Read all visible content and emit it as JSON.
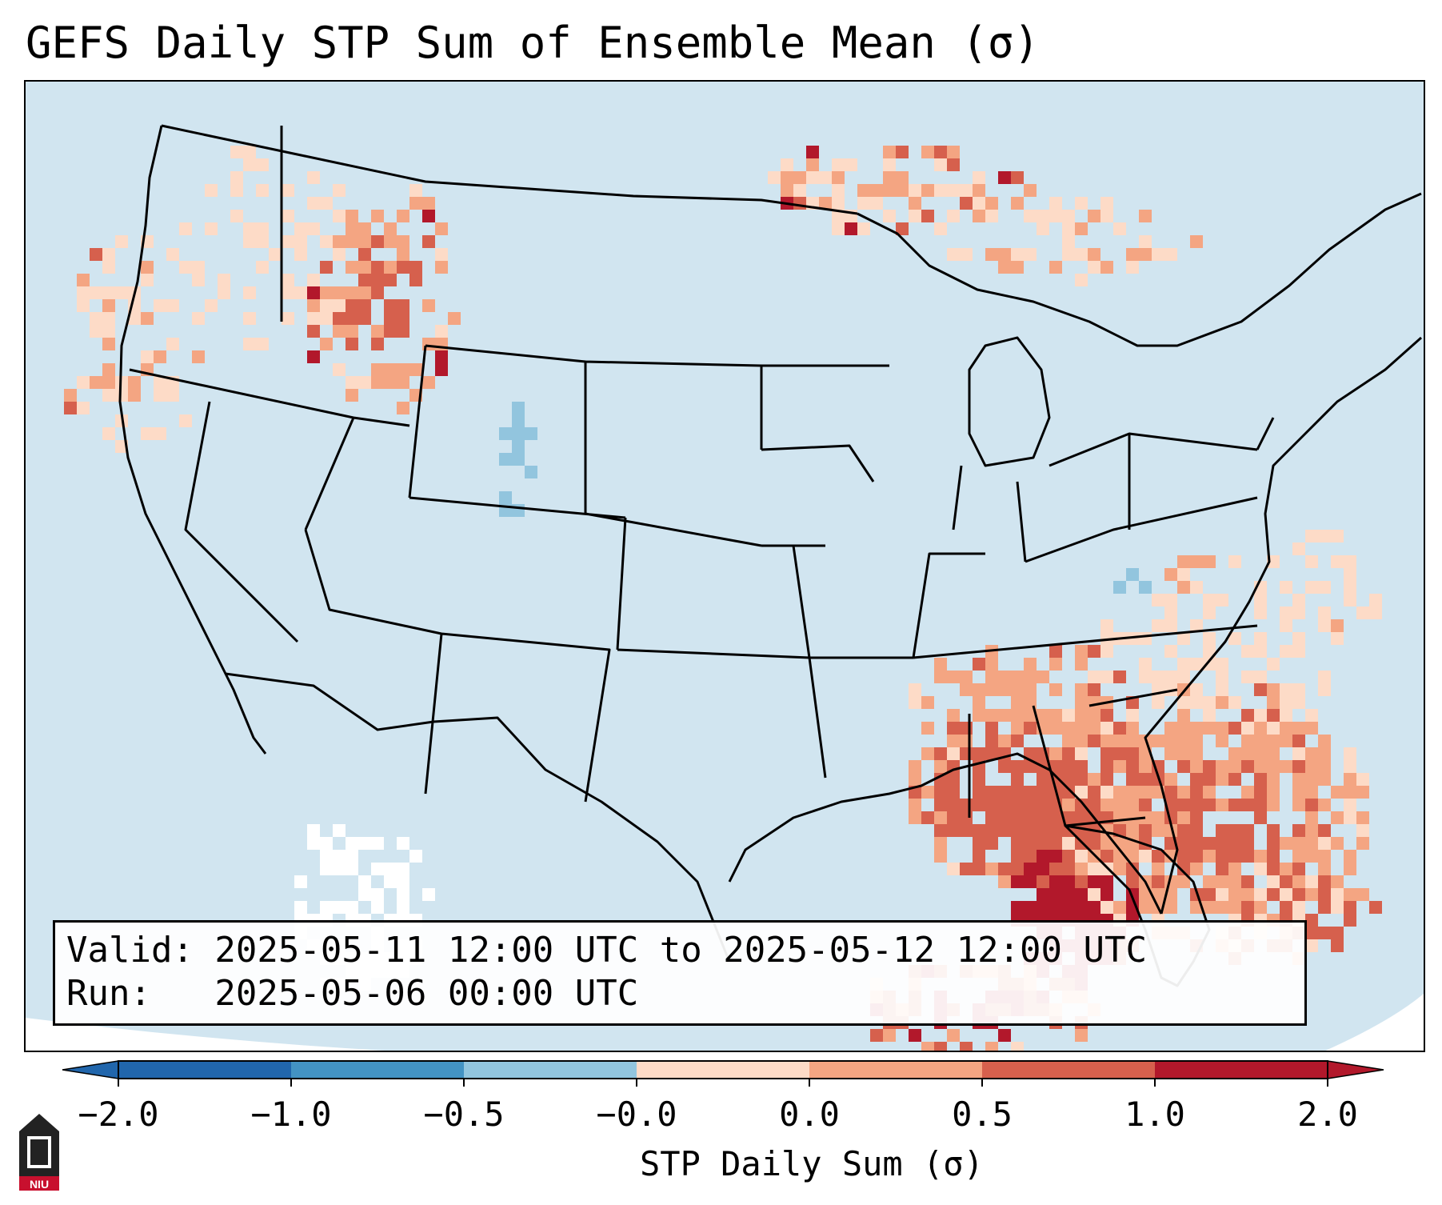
{
  "title": "GEFS Daily STP Sum of Ensemble Mean (σ)",
  "info": {
    "valid_line": "Valid: 2025-05-11 12:00 UTC to 2025-05-12 12:00 UTC",
    "run_line": "Run:   2025-05-06 00:00 UTC"
  },
  "colorbar": {
    "label": "STP Daily Sum (σ)",
    "ticks": [
      "−2.0",
      "−1.0",
      "−0.5",
      "−0.0",
      "0.0",
      "0.5",
      "1.0",
      "2.0"
    ],
    "colors": [
      "#2166ac",
      "#4393c3",
      "#92c5de",
      "#d1e5f0",
      "#fddbc7",
      "#f4a582",
      "#d6604d",
      "#b2182b"
    ],
    "under_color": "#2166ac",
    "over_color": "#b2182b"
  },
  "map": {
    "ocean_color": "#d1e5f0",
    "outline_color": "#000000"
  },
  "logo": {
    "text": "NIU",
    "color": "#c8102e"
  }
}
